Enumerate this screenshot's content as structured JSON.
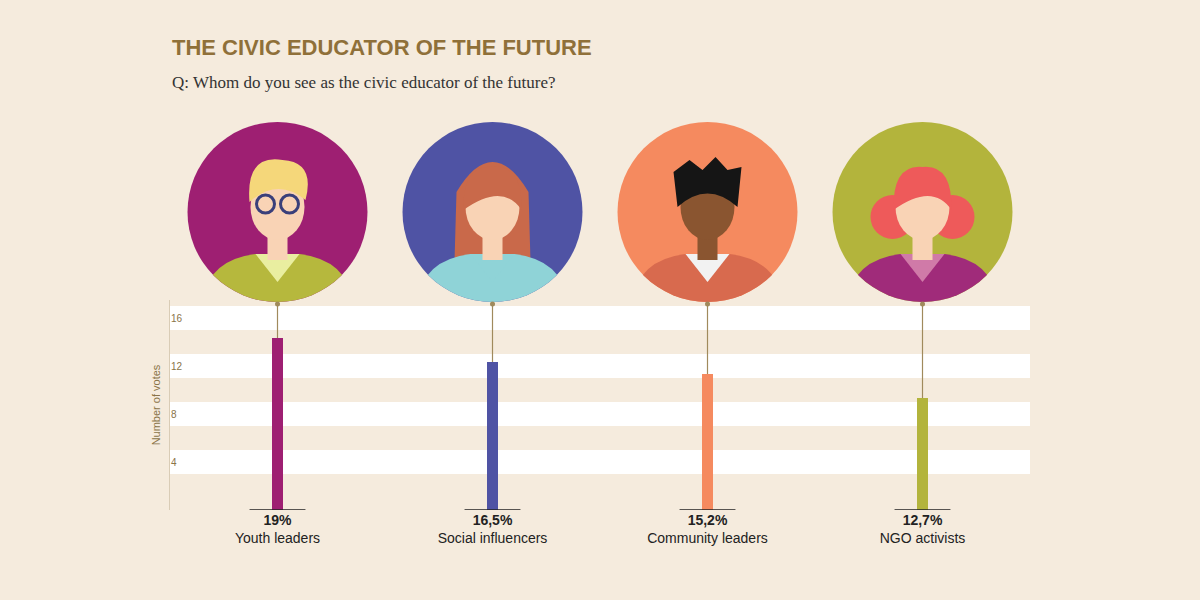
{
  "chart_data": {
    "type": "bar",
    "title": "THE CIVIC EDUCATOR OF THE FUTURE",
    "subtitle": "Q: Whom do you see as the civic educator of the future?",
    "y_label": "Number of votes",
    "categories": [
      "Youth leaders",
      "Social influencers",
      "Community leaders",
      "NGO activists"
    ],
    "values": [
      14.3,
      12.3,
      11.3,
      9.3
    ],
    "percent_labels": [
      "19%",
      "16,5%",
      "15,2%",
      "12,7%"
    ],
    "colors": [
      "#9e1f72",
      "#4f53a4",
      "#f58a5f",
      "#b3b43c"
    ],
    "ylim": [
      0,
      17.5
    ],
    "yticks": [
      4,
      8,
      12,
      16
    ],
    "grid": true
  }
}
